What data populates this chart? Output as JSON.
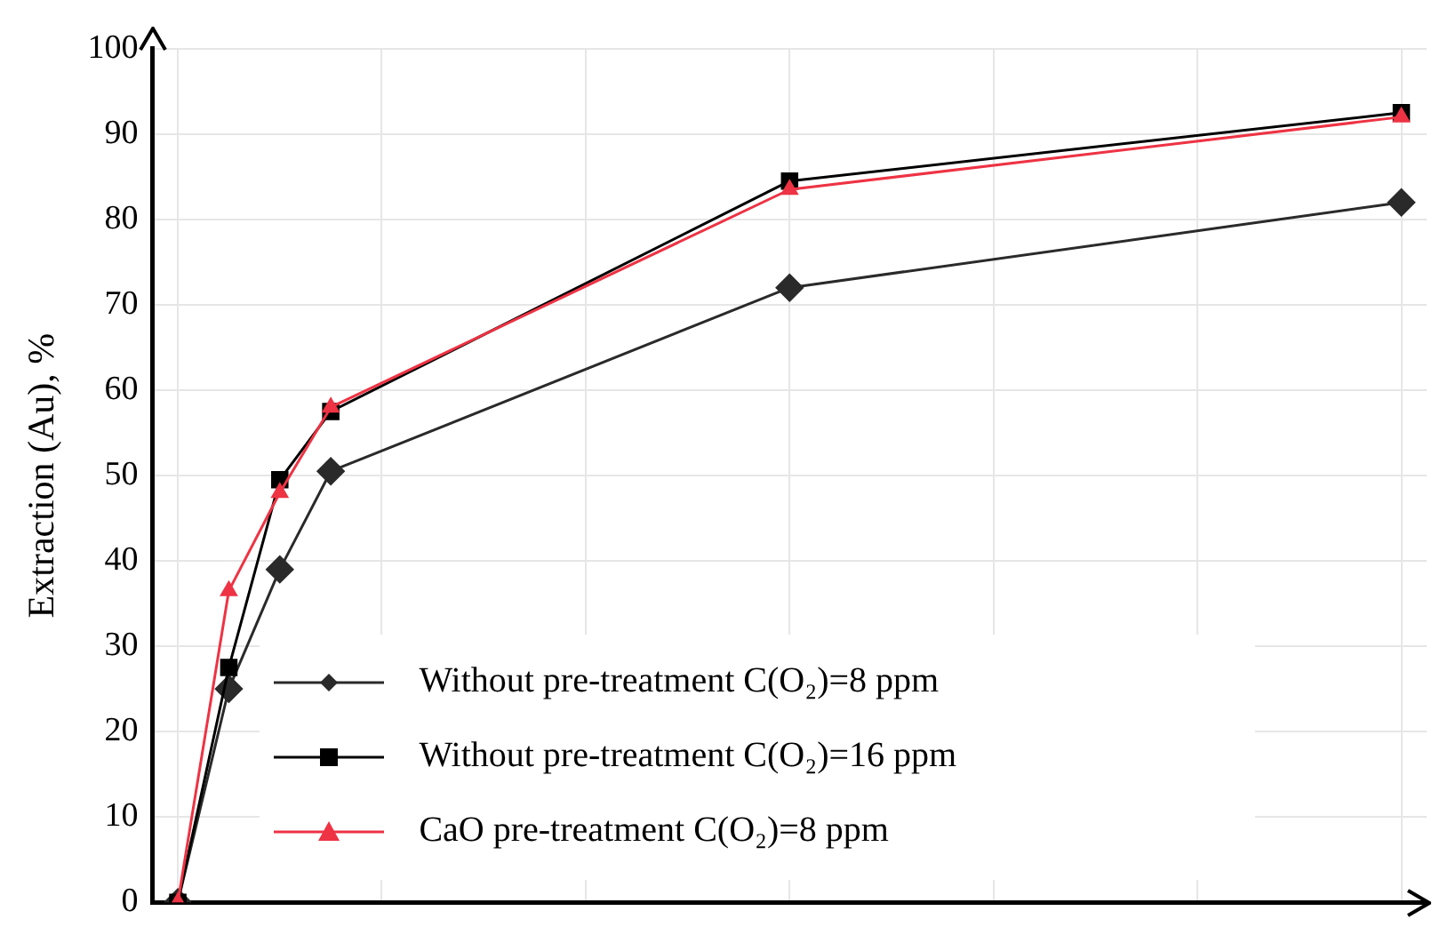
{
  "chart_data": {
    "type": "line",
    "ylabel": "Extraction (Au), %",
    "categories": [
      null,
      null,
      null,
      null,
      null,
      null,
      null,
      null,
      null,
      null,
      null,
      null,
      null,
      null,
      null,
      null,
      null,
      null,
      null,
      null,
      null,
      null,
      null,
      null,
      null
    ],
    "series": [
      {
        "name": "Without pre-treatment C(O₂)=8 ppm",
        "color": "#2a2a2a",
        "marker": "diamond",
        "values": [
          0,
          25,
          39,
          50.5,
          null,
          null,
          null,
          null,
          null,
          null,
          null,
          null,
          72,
          null,
          null,
          null,
          null,
          null,
          null,
          null,
          null,
          null,
          null,
          null,
          82
        ]
      },
      {
        "name": "Without pre-treatment C(O₂)=16 ppm",
        "color": "#000000",
        "marker": "square",
        "values": [
          0,
          27.5,
          49.5,
          57.5,
          null,
          null,
          null,
          null,
          null,
          null,
          null,
          null,
          84.5,
          null,
          null,
          null,
          null,
          null,
          null,
          null,
          null,
          null,
          null,
          null,
          92.5
        ]
      },
      {
        "name": "CaO pre-treatment C(O₂)=8 ppm",
        "color": "#ee3344",
        "marker": "triangle",
        "values": [
          0,
          36.5,
          48,
          58,
          null,
          null,
          null,
          null,
          null,
          null,
          null,
          null,
          83.5,
          null,
          null,
          null,
          null,
          null,
          null,
          null,
          null,
          null,
          null,
          null,
          92
        ]
      }
    ],
    "ylim": [
      0,
      100
    ],
    "yticks": [
      0,
      10,
      20,
      30,
      40,
      50,
      60,
      70,
      80,
      90,
      100
    ],
    "grid": true,
    "legend": "bottom",
    "tick_labels": "y",
    "line_style": "solid"
  }
}
